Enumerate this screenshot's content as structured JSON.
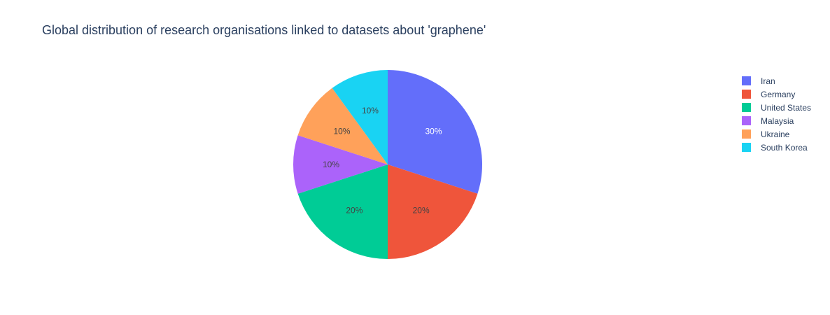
{
  "chart_data": {
    "type": "pie",
    "title": "Global distribution of research organisations linked to datasets about 'graphene'",
    "categories": [
      "Iran",
      "Germany",
      "United States",
      "Malaysia",
      "Ukraine",
      "South Korea"
    ],
    "values": [
      3,
      2,
      2,
      1,
      1,
      1
    ],
    "percent_labels": [
      "30%",
      "20%",
      "20%",
      "10%",
      "10%",
      "10%"
    ],
    "colors": [
      "#636efa",
      "#ef553b",
      "#00cc96",
      "#ab63fa",
      "#ffa15a",
      "#19d3f3"
    ],
    "label_colors": [
      "#ffffff",
      "#444444",
      "#444444",
      "#444444",
      "#444444",
      "#444444"
    ],
    "legend_placement": "right",
    "legend": [
      {
        "label": "Iran",
        "color": "#636efa"
      },
      {
        "label": "Germany",
        "color": "#ef553b"
      },
      {
        "label": "United States",
        "color": "#00cc96"
      },
      {
        "label": "Malaysia",
        "color": "#ab63fa"
      },
      {
        "label": "Ukraine",
        "color": "#ffa15a"
      },
      {
        "label": "South Korea",
        "color": "#19d3f3"
      }
    ]
  }
}
